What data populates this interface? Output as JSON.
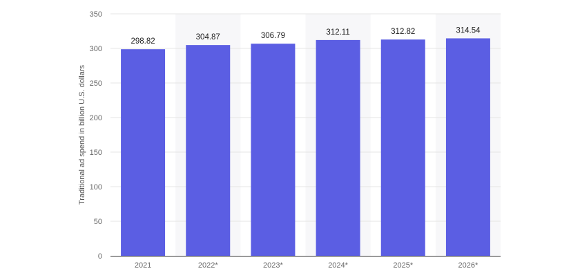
{
  "chart_data": {
    "type": "bar",
    "categories": [
      "2021",
      "2022*",
      "2023*",
      "2024*",
      "2025*",
      "2026*"
    ],
    "values": [
      298.82,
      304.87,
      306.79,
      312.11,
      312.82,
      314.54
    ],
    "value_labels": [
      "298.82",
      "304.87",
      "306.79",
      "312.11",
      "312.82",
      "314.54"
    ],
    "ylabel": "Traditional ad spend in billion U.S. dollars",
    "ylim": [
      0,
      350
    ],
    "yticks": [
      0,
      50,
      100,
      150,
      200,
      250,
      300,
      350
    ],
    "grid": true,
    "alternating_column_shading": true,
    "colors": {
      "bar": "#5b5ee3",
      "grid": "#e4e4e4",
      "band": "#f7f7f9",
      "axis": "#333333"
    }
  }
}
